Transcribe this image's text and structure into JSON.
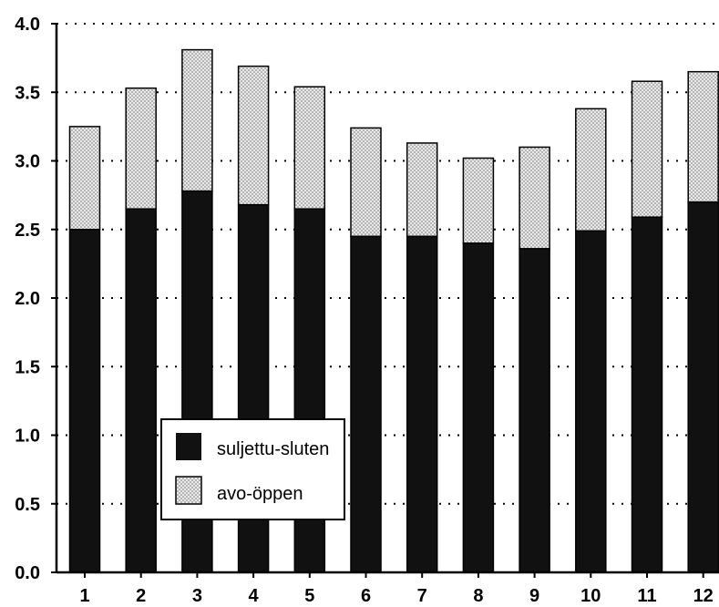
{
  "chart_data": {
    "type": "bar",
    "stacked": true,
    "categories": [
      "1",
      "2",
      "3",
      "4",
      "5",
      "6",
      "7",
      "8",
      "9",
      "10",
      "11",
      "12"
    ],
    "series": [
      {
        "name": "suljettu-sluten",
        "values": [
          2.5,
          2.65,
          2.78,
          2.68,
          2.65,
          2.45,
          2.45,
          2.4,
          2.36,
          2.49,
          2.59,
          2.7
        ],
        "color": "#111111"
      },
      {
        "name": "avo-öppen",
        "values": [
          0.75,
          0.88,
          1.03,
          1.01,
          0.89,
          0.79,
          0.68,
          0.62,
          0.74,
          0.89,
          0.99,
          0.95
        ],
        "color": "#cfcfcf"
      }
    ],
    "ylim": [
      0,
      4.0
    ],
    "yticks": [
      "0.0",
      "0.5",
      "1.0",
      "1.5",
      "2.0",
      "2.5",
      "3.0",
      "3.5",
      "4.0"
    ],
    "grid": "horizontal dotted",
    "legend": "inside lower-left"
  }
}
